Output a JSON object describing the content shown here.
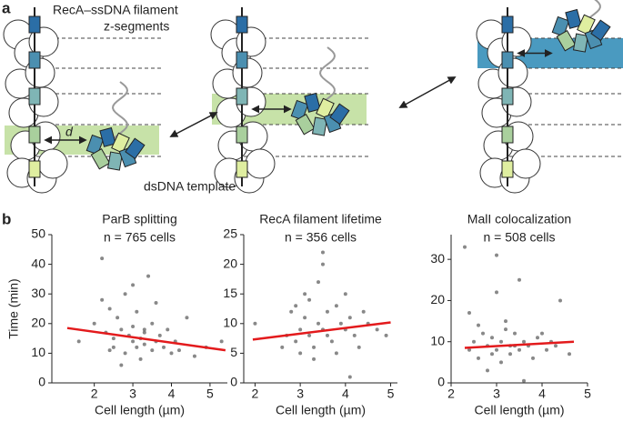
{
  "figure": {
    "panel_a": "a",
    "panel_b": "b",
    "filament_label": "RecA–ssDNA filament",
    "segments_label": "z-segments",
    "distance_label": "d",
    "template_label": "dsDNA template"
  },
  "chart_data": [
    {
      "type": "scatter",
      "title": "ParB splitting",
      "subtitle": "n = 765 cells",
      "xlabel": "Cell length (µm)",
      "ylabel": "Time (min)",
      "xlim": [
        0.9,
        5.45
      ],
      "ylim": [
        0,
        50
      ],
      "xticks": [
        2,
        3,
        4,
        5
      ],
      "yticks": [
        0,
        10,
        20,
        30,
        40,
        50
      ],
      "color": "#555555",
      "x": [
        1.6,
        2.0,
        2.2,
        2.3,
        2.4,
        2.5,
        2.5,
        2.6,
        2.7,
        2.8,
        2.8,
        2.9,
        3.0,
        3.0,
        3.1,
        3.1,
        3.2,
        3.2,
        3.3,
        3.3,
        3.4,
        3.5,
        3.5,
        3.6,
        3.7,
        3.8,
        3.9,
        4.0,
        4.1,
        4.2,
        4.4,
        4.6,
        4.9,
        5.3,
        2.2,
        2.7,
        3.0,
        3.6,
        2.4,
        3.3
      ],
      "values": [
        14,
        20,
        42,
        17,
        25,
        15,
        12,
        22,
        18,
        10,
        30,
        16,
        14,
        19,
        12,
        24,
        15,
        8,
        17,
        13,
        36,
        11,
        20,
        14,
        16,
        12,
        18,
        10,
        14,
        11,
        22,
        9,
        12,
        14,
        28,
        6,
        33,
        27,
        11,
        18
      ],
      "fit": {
        "color": "#e31a1c",
        "x": [
          1.3,
          5.4
        ],
        "values": [
          18.5,
          11
        ]
      }
    },
    {
      "type": "scatter",
      "title": "RecA filament lifetime",
      "subtitle": "n = 356 cells",
      "xlabel": "Cell length (µm)",
      "xlim": [
        1.75,
        5.15
      ],
      "ylim": [
        0,
        25
      ],
      "xticks": [
        2,
        3,
        4,
        5
      ],
      "yticks": [
        0,
        5,
        10,
        15,
        20,
        25
      ],
      "color": "#555555",
      "x": [
        2.0,
        2.6,
        2.7,
        2.8,
        2.9,
        3.0,
        3.0,
        3.1,
        3.2,
        3.2,
        3.3,
        3.4,
        3.4,
        3.5,
        3.5,
        3.6,
        3.6,
        3.7,
        3.8,
        3.9,
        4.0,
        4.0,
        4.1,
        4.2,
        4.3,
        4.4,
        4.5,
        4.7,
        4.9,
        3.3,
        3.5,
        2.9,
        3.8,
        3.1,
        4.1
      ],
      "values": [
        10,
        6,
        8,
        12,
        7,
        9,
        5,
        11,
        8,
        14,
        6,
        10,
        17,
        9,
        22,
        8,
        12,
        7,
        13,
        10,
        9,
        15,
        11,
        8,
        6,
        12,
        10,
        9,
        8,
        4,
        20,
        13,
        5,
        15,
        1
      ],
      "fit": {
        "color": "#e31a1c",
        "x": [
          1.95,
          5.0
        ],
        "values": [
          7.3,
          10.2
        ]
      }
    },
    {
      "type": "scatter",
      "title": "MalI colocalization",
      "subtitle": "n = 508 cells",
      "xlabel": "Cell length (µm)",
      "xlim": [
        2,
        5
      ],
      "ylim": [
        0,
        36
      ],
      "xticks": [
        2,
        3,
        4,
        5
      ],
      "yticks": [
        0,
        10,
        20,
        30
      ],
      "color": "#555555",
      "x": [
        2.3,
        2.4,
        2.5,
        2.6,
        2.7,
        2.8,
        2.9,
        2.9,
        3.0,
        3.0,
        3.1,
        3.1,
        3.2,
        3.3,
        3.3,
        3.4,
        3.5,
        3.5,
        3.6,
        3.7,
        3.8,
        3.9,
        4.0,
        4.1,
        4.2,
        4.4,
        4.6,
        2.8,
        3.2,
        3.4,
        3.0,
        2.6,
        3.6,
        2.4,
        4.3
      ],
      "values": [
        33,
        8,
        10,
        6,
        12,
        9,
        7,
        11,
        31,
        8,
        10,
        5,
        13,
        9,
        7,
        12,
        8,
        25,
        10,
        9,
        6,
        11,
        12,
        8,
        10,
        20,
        7,
        3,
        15,
        9,
        22,
        14,
        0.5,
        17,
        9
      ],
      "fit": {
        "color": "#e31a1c",
        "x": [
          2.3,
          4.7
        ],
        "values": [
          8.5,
          10
        ]
      }
    }
  ]
}
